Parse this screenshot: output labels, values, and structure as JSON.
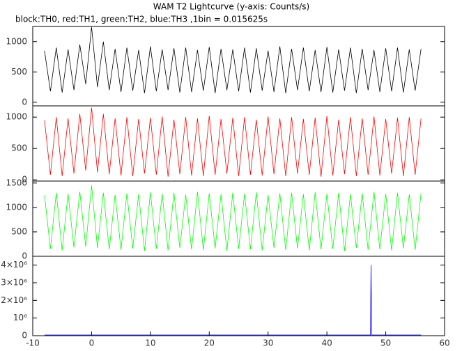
{
  "chart_data": [
    {
      "type": "line",
      "title": "WAM T2 Lightcurve (y-axis: Counts/s)",
      "subtitle": "block:TH0, red:TH1, green:TH2, blue:TH3 ,1bin = 0.015625s",
      "xlim": [
        -10,
        60
      ],
      "ylim": [
        -60,
        1250
      ],
      "yticks": [
        0,
        500,
        1000
      ],
      "x": [
        -8,
        -7,
        -6,
        -5,
        -4,
        -3,
        -2,
        -1,
        0,
        1,
        2,
        3,
        4,
        5,
        6,
        7,
        8,
        9,
        10,
        11,
        12,
        13,
        14,
        15,
        16,
        17,
        18,
        19,
        20,
        21,
        22,
        23,
        24,
        25,
        26,
        27,
        28,
        29,
        30,
        31,
        32,
        33,
        34,
        35,
        36,
        37,
        38,
        39,
        40,
        41,
        42,
        43,
        44,
        45,
        46,
        47,
        48,
        49,
        50,
        51,
        52,
        53,
        54,
        55,
        56
      ],
      "series": [
        {
          "color": "#000000",
          "values": [
            850,
            180,
            900,
            160,
            870,
            200,
            950,
            300,
            1240,
            250,
            1000,
            200,
            880,
            170,
            900,
            190,
            860,
            150,
            920,
            180,
            870,
            200,
            890,
            160,
            900,
            170,
            860,
            190,
            910,
            150,
            880,
            200,
            870,
            180,
            900,
            160,
            890,
            190,
            850,
            170,
            920,
            150,
            880,
            200,
            900,
            180,
            860,
            170,
            910,
            160,
            870,
            190,
            900,
            150,
            880,
            200,
            860,
            170,
            890,
            180,
            900,
            160,
            870,
            190,
            880
          ]
        }
      ]
    },
    {
      "type": "line",
      "xlim": [
        -10,
        60
      ],
      "ylim": [
        -20,
        1180
      ],
      "yticks": [
        0,
        500,
        1000
      ],
      "x": [
        -8,
        -7,
        -6,
        -5,
        -4,
        -3,
        -2,
        -1,
        0,
        1,
        2,
        3,
        4,
        5,
        6,
        7,
        8,
        9,
        10,
        11,
        12,
        13,
        14,
        15,
        16,
        17,
        18,
        19,
        20,
        21,
        22,
        23,
        24,
        25,
        26,
        27,
        28,
        29,
        30,
        31,
        32,
        33,
        34,
        35,
        36,
        37,
        38,
        39,
        40,
        41,
        42,
        43,
        44,
        45,
        46,
        47,
        48,
        49,
        50,
        51,
        52,
        53,
        54,
        55,
        56
      ],
      "series": [
        {
          "color": "#ff0000",
          "values": [
            950,
            80,
            1000,
            60,
            980,
            100,
            1050,
            150,
            1150,
            120,
            1050,
            90,
            980,
            70,
            1000,
            60,
            970,
            100,
            990,
            80,
            1010,
            50,
            960,
            90,
            1000,
            70,
            980,
            60,
            1020,
            80,
            970,
            100,
            990,
            60,
            1000,
            80,
            960,
            70,
            1010,
            90,
            980,
            60,
            1000,
            100,
            970,
            80,
            990,
            50,
            1020,
            70,
            960,
            90,
            1000,
            60,
            980,
            80,
            1010,
            70,
            970,
            100,
            990,
            60,
            1000,
            80,
            980
          ]
        }
      ]
    },
    {
      "type": "line",
      "xlim": [
        -10,
        60
      ],
      "ylim": [
        0,
        1540
      ],
      "yticks": [
        0,
        500,
        1000,
        1500
      ],
      "x": [
        -8,
        -7,
        -6,
        -5,
        -4,
        -3,
        -2,
        -1,
        0,
        1,
        2,
        3,
        4,
        5,
        6,
        7,
        8,
        9,
        10,
        11,
        12,
        13,
        14,
        15,
        16,
        17,
        18,
        19,
        20,
        21,
        22,
        23,
        24,
        25,
        26,
        27,
        28,
        29,
        30,
        31,
        32,
        33,
        34,
        35,
        36,
        37,
        38,
        39,
        40,
        41,
        42,
        43,
        44,
        45,
        46,
        47,
        48,
        49,
        50,
        51,
        52,
        53,
        54,
        55,
        56
      ],
      "series": [
        {
          "color": "#00ff00",
          "values": [
            1250,
            150,
            1300,
            120,
            1280,
            180,
            1320,
            200,
            1450,
            170,
            1300,
            140,
            1260,
            130,
            1290,
            160,
            1270,
            110,
            1310,
            150,
            1280,
            120,
            1300,
            170,
            1260,
            140,
            1320,
            130,
            1290,
            160,
            1270,
            110,
            1300,
            150,
            1280,
            140,
            1310,
            120,
            1260,
            170,
            1290,
            130,
            1300,
            160,
            1270,
            120,
            1310,
            140,
            1280,
            150,
            1300,
            110,
            1270,
            170,
            1290,
            130,
            1320,
            140,
            1280,
            120,
            1300,
            160,
            1270,
            130,
            1290
          ]
        }
      ]
    },
    {
      "type": "line",
      "xlim": [
        -10,
        60
      ],
      "ylim": [
        0,
        4500000
      ],
      "yticks": [
        0,
        {
          "value": 1000000,
          "label": "10⁶"
        },
        {
          "value": 2000000,
          "label": "2×10⁶"
        },
        {
          "value": 3000000,
          "label": "3×10⁶"
        },
        {
          "value": 4000000,
          "label": "4×10⁶"
        }
      ],
      "xticks": [
        -10,
        0,
        10,
        20,
        30,
        40,
        50,
        60
      ],
      "x": [
        -8,
        47.4,
        47.5,
        47.6,
        56
      ],
      "series": [
        {
          "color": "#0000ff",
          "values": [
            40000,
            40000,
            4000000,
            40000,
            40000
          ]
        }
      ]
    }
  ]
}
